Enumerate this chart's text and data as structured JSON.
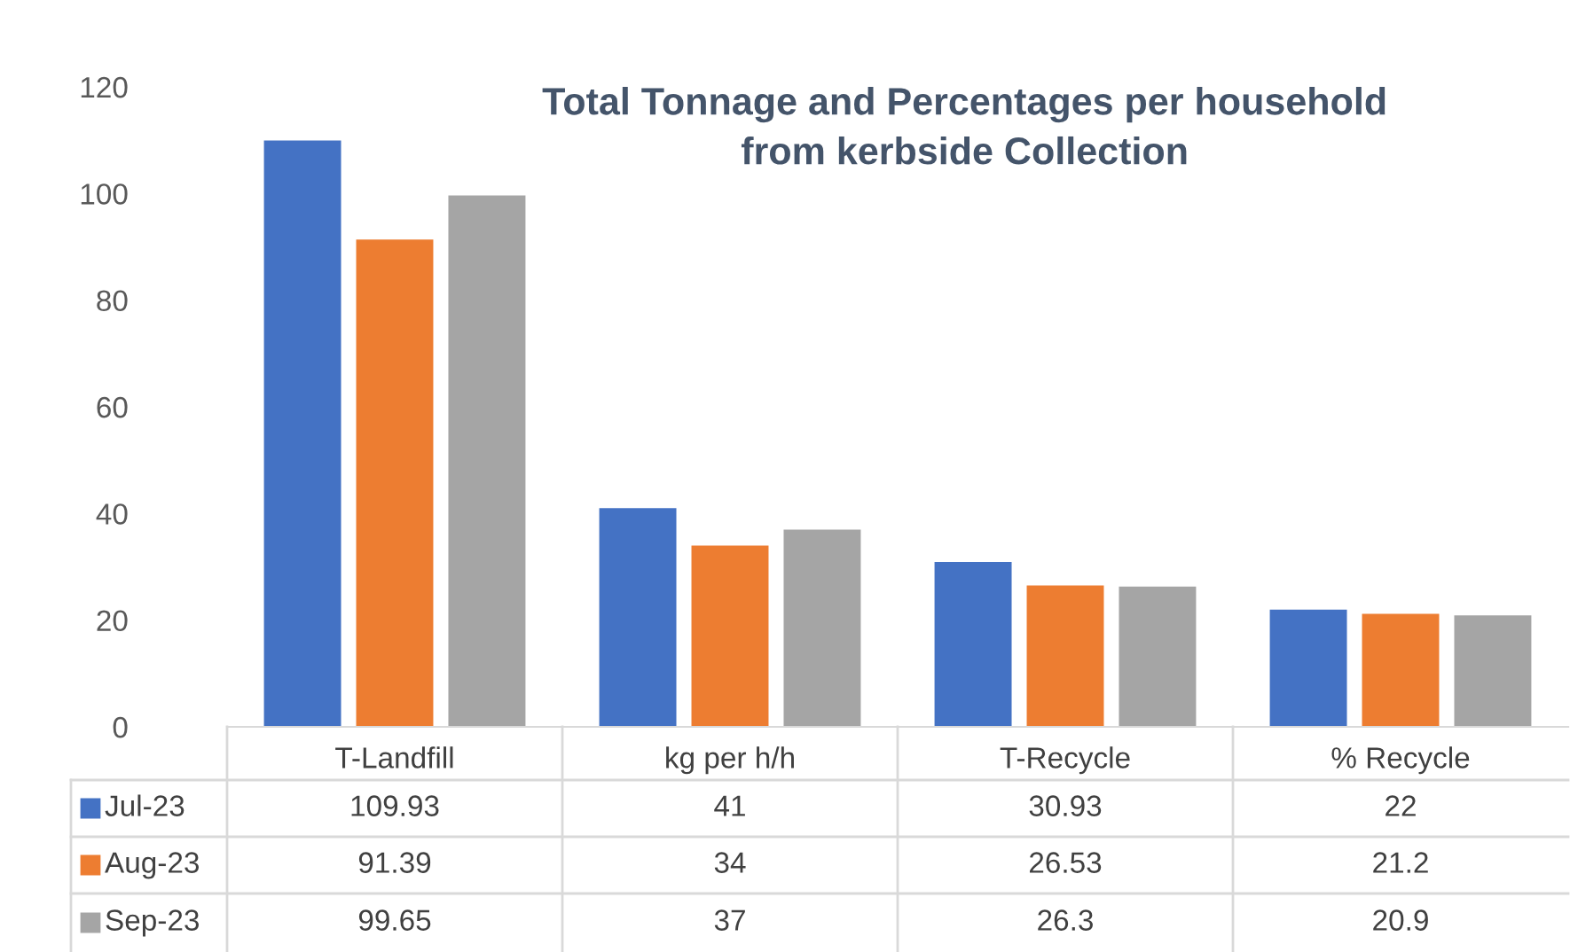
{
  "chart_data": {
    "type": "bar",
    "title": "Total Tonnage and Percentages per household\nfrom kerbside Collection",
    "categories": [
      "T-Landfill",
      "kg per h/h",
      "T-Recycle",
      "% Recycle"
    ],
    "series": [
      {
        "name": "Jul-23",
        "color": "#4472c4",
        "values": [
          109.93,
          41,
          30.93,
          22
        ]
      },
      {
        "name": "Aug-23",
        "color": "#ed7d31",
        "values": [
          91.39,
          34,
          26.53,
          21.2
        ]
      },
      {
        "name": "Sep-23",
        "color": "#a5a5a5",
        "values": [
          99.65,
          37,
          26.3,
          20.9
        ]
      }
    ],
    "ylim": [
      0,
      120
    ],
    "yticks": [
      0,
      20,
      40,
      60,
      80,
      100,
      120
    ],
    "grid": false,
    "data_labels": true,
    "legend": "bottom"
  }
}
